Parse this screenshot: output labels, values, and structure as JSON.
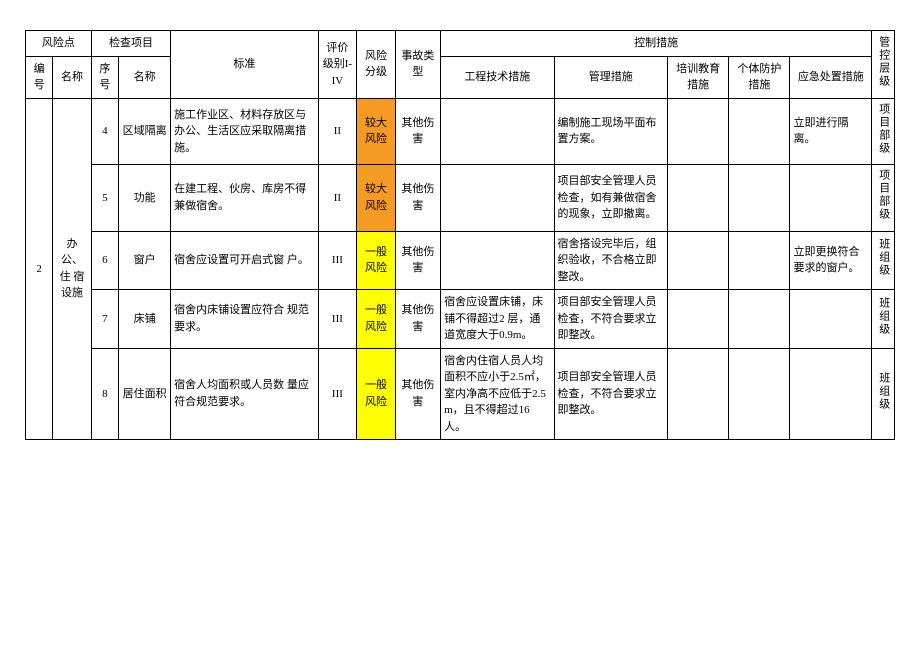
{
  "columns": {
    "risk_point": "风险点",
    "check_item": "检查项目",
    "standard": "标准",
    "eval_level": "评价级别I-IV",
    "risk_class": "风险分级",
    "accident_type": "事故类型",
    "control": "控制措施",
    "ctrl_level": "管控层级",
    "id": "编号",
    "name": "名称",
    "seq": "序号",
    "sub_name": "名称",
    "eng_measure": "工程技术措施",
    "mgmt_measure": "管理措施",
    "train_measure": "培训教育措施",
    "ppe_measure": "个体防护措施",
    "emergency_measure": "应急处置措施"
  },
  "risk_colors": {
    "较大风险": "#f59b23",
    "一般风险": "#ffff00"
  },
  "group": {
    "id": "2",
    "name": "办 公、住 宿 设施"
  },
  "level_colors": {
    "项目部级": "#fff",
    "班组级": "#fff"
  },
  "rows": [
    {
      "seq": "4",
      "sub": "区域隔离",
      "standard": "施工作业区、材料存放区与办公、生活区应采取隔离措施。",
      "eval": "II",
      "risk": "较大风险",
      "accident": "其他伤害",
      "eng": "",
      "mgmt": "编制施工现场平面布置方案。",
      "train": "",
      "ppe": "",
      "emer": "立即进行隔离。",
      "ctrl": "项目部级"
    },
    {
      "seq": "5",
      "sub": "功能",
      "standard": "在建工程、伙房、库房不得兼做宿舍。",
      "eval": "II",
      "risk": "较大风险",
      "accident": "其他伤害",
      "eng": "",
      "mgmt": "项目部安全管理人员检查，如有兼做宿舍的现象，立即撤离。",
      "train": "",
      "ppe": "",
      "emer": "",
      "ctrl": "项目部级"
    },
    {
      "seq": "6",
      "sub": "窗户",
      "standard": "宿舍应设置可开启式窗 户。",
      "eval": "III",
      "risk": "一般风险",
      "accident": "其他伤害",
      "eng": "",
      "mgmt": "宿舍搭设完毕后，组织验收，不合格立即整改。",
      "train": "",
      "ppe": "",
      "emer": "立即更换符合要求的窗户。",
      "ctrl": "班组级"
    },
    {
      "seq": "7",
      "sub": "床铺",
      "standard": "宿舍内床铺设置应符合 规范要求。",
      "eval": "III",
      "risk": "一般风险",
      "accident": "其他伤害",
      "eng": "宿舍应设置床铺，床铺不得超过2 层，通道宽度大于0.9m。",
      "mgmt": "项目部安全管理人员检查，不符合要求立即整改。",
      "train": "",
      "ppe": "",
      "emer": "",
      "ctrl": "班组级"
    },
    {
      "seq": "8",
      "sub": "居住面积",
      "standard": "宿舍人均面积或人员数 量应符合规范要求。",
      "eval": "III",
      "risk": "一般风险",
      "accident": "其他伤害",
      "eng": "宿舍内住宿人员人均面积不应小于2.5㎡，室内净高不应低于2.5m，且不得超过16人。",
      "mgmt": "项目部安全管理人员检查，不符合要求立即整改。",
      "train": "",
      "ppe": "",
      "emer": "",
      "ctrl": "班组级"
    }
  ]
}
